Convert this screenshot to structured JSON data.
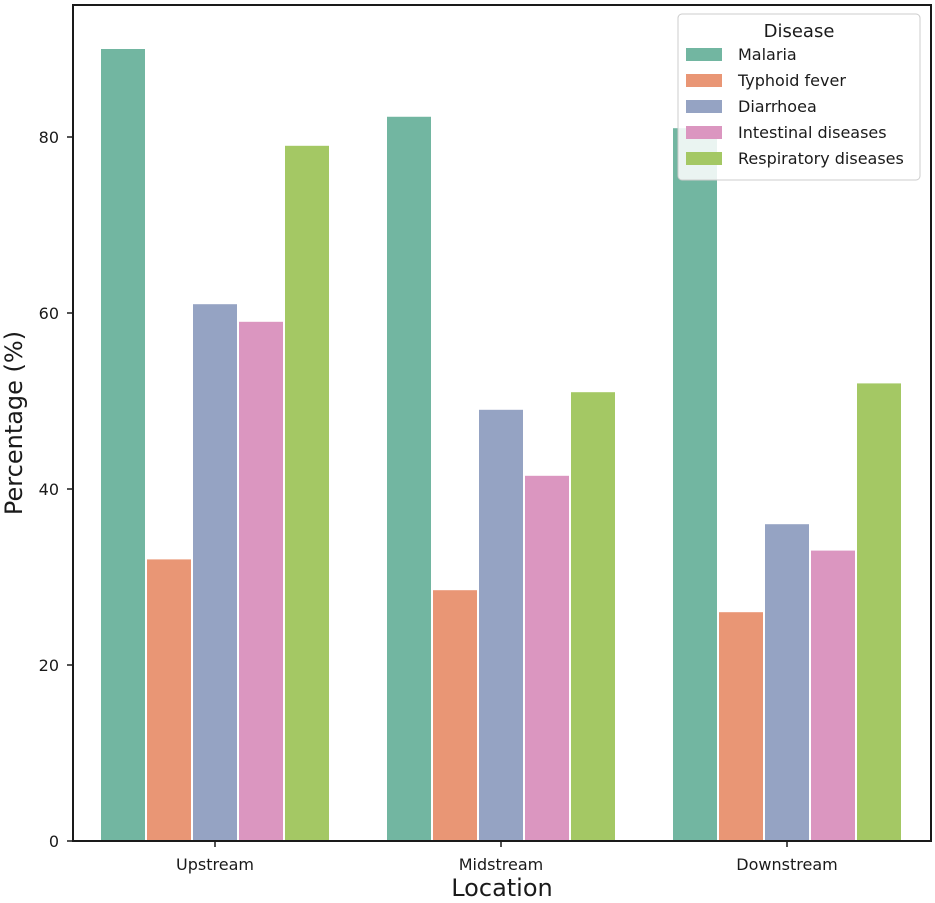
{
  "chart_data": {
    "type": "bar",
    "title": "",
    "xlabel": "Location",
    "ylabel": "Percentage (%)",
    "categories": [
      "Upstream",
      "Midstream",
      "Downstream"
    ],
    "ylim": [
      0,
      95
    ],
    "yticks": [
      0,
      20,
      40,
      60,
      80
    ],
    "grid": false,
    "legend": {
      "title": "Disease",
      "position": "top-right"
    },
    "series": [
      {
        "name": "Malaria",
        "color": "#72b6a1",
        "values": [
          90,
          82.3,
          81
        ]
      },
      {
        "name": "Typhoid fever",
        "color": "#e99675",
        "values": [
          32,
          28.5,
          26
        ]
      },
      {
        "name": "Diarrhoea",
        "color": "#95a3c3",
        "values": [
          61,
          49,
          36
        ]
      },
      {
        "name": "Intestinal diseases",
        "color": "#db96c0",
        "values": [
          59,
          41.5,
          33
        ]
      },
      {
        "name": "Respiratory diseases",
        "color": "#a4c864",
        "values": [
          79,
          51,
          52
        ]
      }
    ]
  }
}
